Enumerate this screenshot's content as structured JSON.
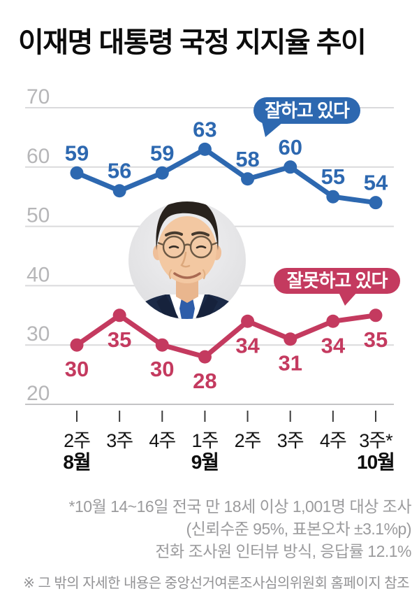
{
  "title": "이재명 대통령 국정 지지율 추이",
  "chart_data": {
    "type": "line",
    "x_tick_labels": [
      "2주",
      "3주",
      "4주",
      "1주",
      "2주",
      "3주",
      "4주",
      "3주*"
    ],
    "month_labels": [
      {
        "index": 0,
        "label": "8월"
      },
      {
        "index": 3,
        "label": "9월"
      },
      {
        "index": 7,
        "label": "10월"
      }
    ],
    "yticks": [
      20,
      30,
      40,
      50,
      60,
      70
    ],
    "ylim": [
      20,
      70
    ],
    "grid": true,
    "legend_position": "speech-bubbles-on-plot",
    "series": [
      {
        "name": "잘하고 있다",
        "color": "#2d68b0",
        "values": [
          59,
          56,
          59,
          63,
          58,
          60,
          55,
          54
        ],
        "label_position": "above"
      },
      {
        "name": "잘못하고 있다",
        "color": "#c43a5f",
        "values": [
          30,
          35,
          30,
          28,
          34,
          31,
          34,
          35
        ],
        "label_position": "below"
      }
    ]
  },
  "annotations": {
    "approve_bubble": {
      "text": "잘하고 있다",
      "color": "#2d68b0",
      "text_color": "#ffffff"
    },
    "disapprove_bubble": {
      "text": "잘못하고 있다",
      "color": "#c43a5f",
      "text_color": "#ffffff"
    }
  },
  "portrait": {
    "icon": "president-photo"
  },
  "footer": {
    "note_lines": [
      "*10월 14~16일 전국 만 18세 이상 1,001명 대상 조사",
      "(신뢰수준 95%, 표본오차 ±3.1%p)",
      "전화 조사원 인터뷰 방식, 응답률 12.1%"
    ],
    "footnote": "※ 그 밖의 자세한 내용은 중앙선거여론조사심의위원회 홈페이지 참조"
  },
  "colors": {
    "approve": "#2d68b0",
    "disapprove": "#c43a5f",
    "gridline": "#dadadc",
    "axis_bottom": "#c3c3c5",
    "y_label": "#b6b6b8",
    "x_label": "#141414",
    "note_text": "#9b9b9d"
  }
}
